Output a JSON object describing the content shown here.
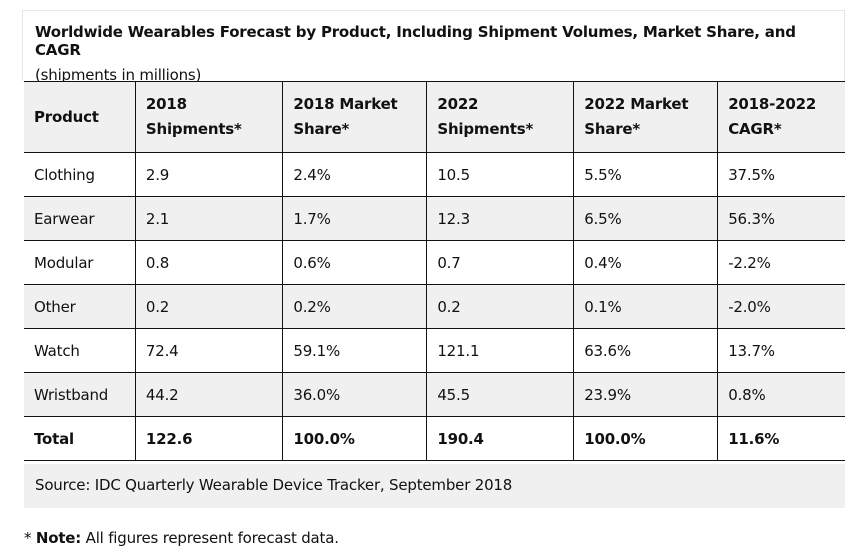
{
  "title": "Worldwide Wearables Forecast by Product, Including Shipment Volumes, Market Share, and CAGR",
  "subtitle": "(shipments in millions)",
  "headers": [
    "Product",
    "2018 Shipments*",
    "2018 Market Share*",
    "2022 Shipments*",
    "2022 Market Share*",
    "2018-2022 CAGR*"
  ],
  "rows": [
    [
      "Clothing",
      "2.9",
      "2.4%",
      "10.5",
      "5.5%",
      "37.5%"
    ],
    [
      "Earwear",
      "2.1",
      "1.7%",
      "12.3",
      "6.5%",
      "56.3%"
    ],
    [
      "Modular",
      "0.8",
      "0.6%",
      "0.7",
      "0.4%",
      "-2.2%"
    ],
    [
      "Other",
      "0.2",
      "0.2%",
      "0.2",
      "0.1%",
      "-2.0%"
    ],
    [
      "Watch",
      "72.4",
      "59.1%",
      "121.1",
      "63.6%",
      "13.7%"
    ],
    [
      "Wristband",
      "44.2",
      "36.0%",
      "45.5",
      "23.9%",
      "0.8%"
    ],
    [
      "Total",
      "122.6",
      "100.0%",
      "190.4",
      "100.0%",
      "11.6%"
    ]
  ],
  "source": "Source: IDC Quarterly Wearable Device Tracker, September 2018",
  "note": {
    "prefix": "* ",
    "label": "Note:",
    "text": " All figures represent forecast data."
  }
}
